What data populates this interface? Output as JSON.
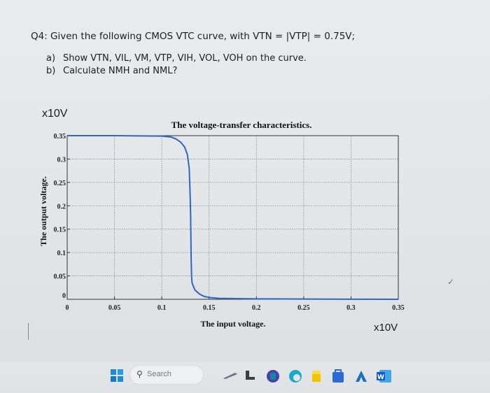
{
  "question": {
    "title": "Q4: Given the following CMOS VTC curve, with VTN = |VTP| = 0.75V;",
    "items": [
      {
        "label": "a)",
        "text": "Show VTN, VIL, VM, VTP, VIH, VOL, VOH on the curve."
      },
      {
        "label": "b)",
        "text": "Calculate NMH and NML?"
      }
    ]
  },
  "chart_data": {
    "type": "line",
    "title": "The voltage-transfer characteristics.",
    "xlabel": "The input voltage.",
    "ylabel": "The output voltage.",
    "x_scale_label": "x10V",
    "y_scale_label": "x10V",
    "xlim": [
      0,
      0.35
    ],
    "ylim": [
      0,
      0.35
    ],
    "x_ticks": [
      "0",
      "0.05",
      "0.1",
      "0.15",
      "0.2",
      "0.25",
      "0.3",
      "0.35"
    ],
    "y_ticks": [
      "0",
      "0.05",
      "0.1",
      "0.15",
      "0.2",
      "0.25",
      "0.3",
      "0.35"
    ],
    "grid": true,
    "series": [
      {
        "color": "#2f67c4",
        "x": [
          0,
          0.05,
          0.1,
          0.11,
          0.115,
          0.12,
          0.124,
          0.127,
          0.129,
          0.13,
          0.1305,
          0.131,
          0.1315,
          0.132,
          0.135,
          0.14,
          0.145,
          0.15,
          0.16,
          0.2,
          0.25,
          0.3,
          0.35
        ],
        "y": [
          0.35,
          0.35,
          0.349,
          0.347,
          0.343,
          0.336,
          0.326,
          0.31,
          0.28,
          0.22,
          0.175,
          0.09,
          0.05,
          0.035,
          0.02,
          0.011,
          0.006,
          0.004,
          0.002,
          0.001,
          0.0005,
          0.0002,
          0
        ]
      }
    ]
  },
  "taskbar": {
    "search_placeholder": "Search",
    "search_icon": "magnifier-icon",
    "icons": [
      "windows-start-icon",
      "pen-icon",
      "file-explorer-icon",
      "teams-icon",
      "edge-icon",
      "files-icon",
      "store-icon",
      "azure-vpn-icon",
      "word-icon"
    ]
  }
}
